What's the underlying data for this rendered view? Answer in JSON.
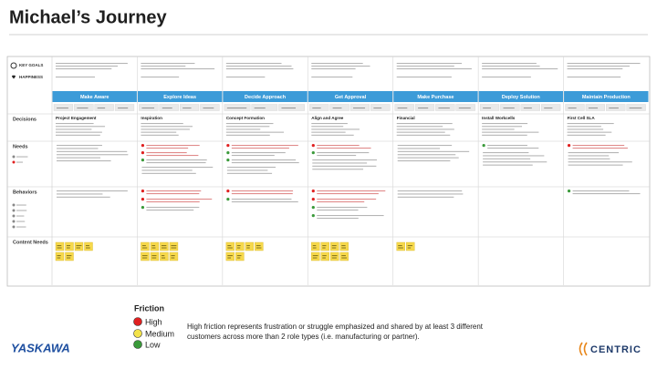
{
  "header": {
    "title": "Michael’s Journey"
  },
  "journey": {
    "goal_label": "KEY GOALS",
    "happiness_label": "HAPPINESS",
    "stages": [
      "Make Aware",
      "Explore Ideas",
      "Decide Approach",
      "Get Approval",
      "Make Purchase",
      "Deploy Solution",
      "Maintain Production"
    ],
    "row_labels": [
      "Decisions",
      "Needs",
      "Behaviors",
      "Content Needs"
    ],
    "decisions": [
      "Project Engagement",
      "Inspiration",
      "Concept Formation",
      "Align and Agree",
      "Financial",
      "Install Workcells",
      "First Cell SLA"
    ]
  },
  "friction_legend": {
    "title": "Friction",
    "levels": [
      "High",
      "Medium",
      "Low"
    ]
  },
  "footnote": [
    "High friction represents frustration or struggle emphasized and shared by at least 3 different",
    "customers across more than 2 role types (i.e. manufacturing or partner)."
  ],
  "logos": {
    "left": "YASKAWA",
    "right": "CENTRIC"
  }
}
